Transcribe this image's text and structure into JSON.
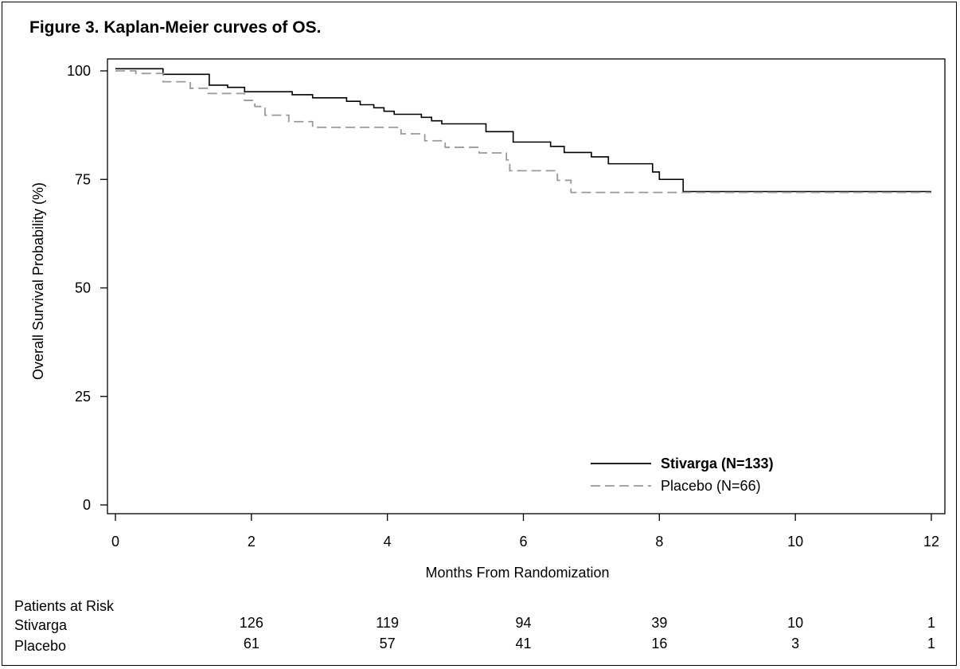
{
  "figure_title": "Figure 3. Kaplan-Meier curves of OS.",
  "chart_data": {
    "type": "line",
    "title": "Figure 3. Kaplan-Meier curves of OS.",
    "xlabel": "Months From Randomization",
    "ylabel": "Overall Survival Probability (%)",
    "xlim": [
      0,
      12
    ],
    "ylim": [
      0,
      100
    ],
    "x_ticks": [
      "0",
      "2",
      "4",
      "6",
      "8",
      "10",
      "12"
    ],
    "y_ticks": [
      "100",
      "75",
      "50",
      "25",
      "0"
    ],
    "grid": false,
    "legend_position": "bottom-right",
    "series": [
      {
        "name": "Stivarga (N=133)",
        "color": "#000000",
        "style": "solid",
        "steps": [
          [
            0,
            100.5
          ],
          [
            0.7,
            99.2
          ],
          [
            1.38,
            96.7
          ],
          [
            1.65,
            96.2
          ],
          [
            1.9,
            95.2
          ],
          [
            2.6,
            94.5
          ],
          [
            2.9,
            93.8
          ],
          [
            3.4,
            93.0
          ],
          [
            3.6,
            92.2
          ],
          [
            3.8,
            91.5
          ],
          [
            3.95,
            90.7
          ],
          [
            4.1,
            90.0
          ],
          [
            4.5,
            89.3
          ],
          [
            4.65,
            88.5
          ],
          [
            4.8,
            87.8
          ],
          [
            5.45,
            86.0
          ],
          [
            5.85,
            83.6
          ],
          [
            6.4,
            82.6
          ],
          [
            6.6,
            81.2
          ],
          [
            7.0,
            80.2
          ],
          [
            7.25,
            78.6
          ],
          [
            7.9,
            76.7
          ],
          [
            8.0,
            75.0
          ],
          [
            8.35,
            72.2
          ],
          [
            12.0,
            72.2
          ]
        ]
      },
      {
        "name": "Placebo (N=66)",
        "color": "#999999",
        "style": "dashed",
        "steps": [
          [
            0,
            100.0
          ],
          [
            0.3,
            99.4
          ],
          [
            0.7,
            97.5
          ],
          [
            1.1,
            96.0
          ],
          [
            1.35,
            94.8
          ],
          [
            1.9,
            93.2
          ],
          [
            2.05,
            91.8
          ],
          [
            2.2,
            89.8
          ],
          [
            2.5,
            89.8
          ],
          [
            2.55,
            88.3
          ],
          [
            2.9,
            87.0
          ],
          [
            4.2,
            85.5
          ],
          [
            4.55,
            83.9
          ],
          [
            4.85,
            82.4
          ],
          [
            5.35,
            81.1
          ],
          [
            5.75,
            79.5
          ],
          [
            5.8,
            77.0
          ],
          [
            6.5,
            74.8
          ],
          [
            6.7,
            72.0
          ],
          [
            12.0,
            72.0
          ]
        ]
      }
    ],
    "at_risk_title": "Patients at Risk",
    "at_risk": [
      {
        "label": "Stivarga",
        "values": [
          "126",
          "119",
          "94",
          "39",
          "10",
          "1"
        ]
      },
      {
        "label": "Placebo",
        "values": [
          "61",
          "57",
          "41",
          "16",
          "3",
          "1"
        ]
      }
    ],
    "at_risk_x": [
      2,
      4,
      6,
      8,
      10,
      12
    ]
  }
}
